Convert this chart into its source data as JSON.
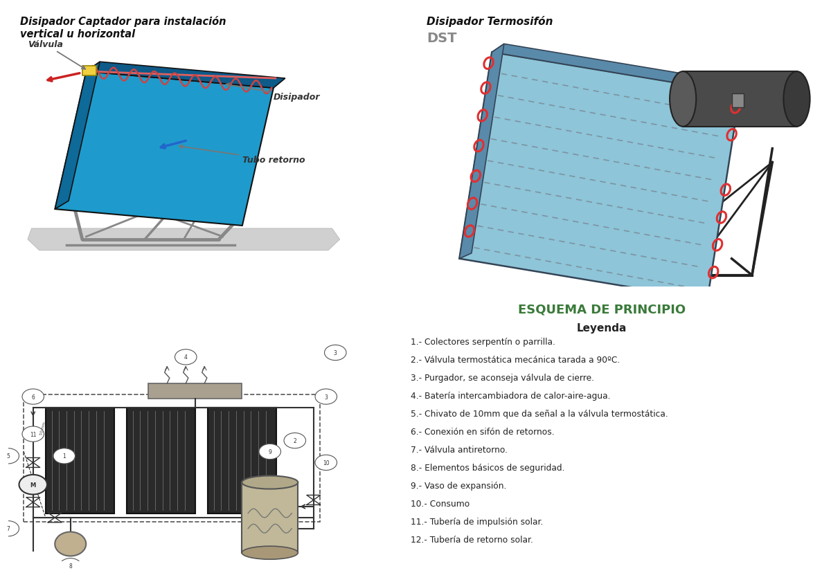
{
  "bg_color": "#ffffff",
  "title_tl_line1": "Disipador Captador para instalación",
  "title_tl_line2": "vertical u horizontal",
  "title_tr_line1": "Disipador Termosifón",
  "title_tr_line2": "DST",
  "title_br": "ESQUEMA DE PRINCIPIO",
  "legend_title": "Leyenda",
  "legend_items": [
    "1.- Colectores serpentín o parrilla.",
    "2.- Válvula termostática mecánica tarada a 90ºC.",
    "3.- Purgador, se aconseja válvula de cierre.",
    "4.- Batería intercambiadora de calor-aire-agua.",
    "5.- Chivato de 10mm que da señal a la válvula termostática.",
    "6.- Conexión en sifón de retornos.",
    "7.- Válvula antiretorno.",
    "8.- Elementos básicos de seguridad.",
    "9.- Vaso de expansión.",
    "10.- Consumo",
    "11.- Tubería de impulsión solar.",
    "12.- Tubería de retorno solar."
  ],
  "label_valvula": "Válvula",
  "label_disipador": "Disipador",
  "label_tubo_retorno": "Tubo retorno",
  "panel_color": "#1e9bcc",
  "panel_side_color": "#0d6a99",
  "panel_top_color": "#0e5a88",
  "spring_color": "#cc4444",
  "frame_color": "#888888",
  "ground_color": "#c8c8c8",
  "dst_panel_color": "#8ec5d8",
  "dst_tank_color": "#555555",
  "dst_title_color": "#888888",
  "dst_ring_color": "#e03030",
  "dst_dash_color": "#7a8a98",
  "scheme_title_color": "#3a7a3a",
  "legend_title_color": "#222222",
  "legend_text_color": "#222222",
  "collector_color": "#3a3a3a",
  "collector_stripe": "#666666",
  "pipe_color": "#333333",
  "tank_body_color": "#b0a898",
  "valve_color": "#f0d040"
}
